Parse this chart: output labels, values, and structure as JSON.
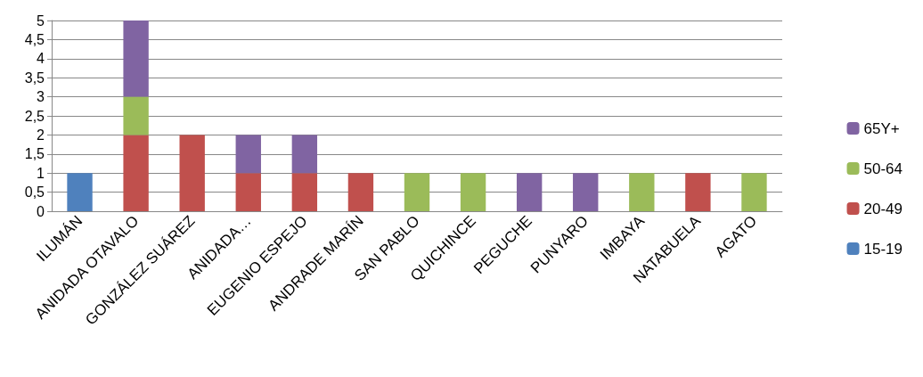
{
  "chart_data": {
    "type": "bar",
    "stacked": true,
    "categories": [
      "ILUMÁN",
      "ANIDADA OTAVALO",
      "GONZÁLEZ SUÁREZ",
      "ANIDADA…",
      "EUGENIO ESPEJO",
      "ANDRADE MARÍN",
      "SAN PABLO",
      "QUICHINCE",
      "PEGUCHE",
      "PUNYARO",
      "IMBAYA",
      "NATABUELA",
      "AGATO"
    ],
    "series": [
      {
        "name": "15-19",
        "color": "#4f81bd",
        "values": [
          1,
          null,
          null,
          null,
          null,
          null,
          null,
          null,
          null,
          null,
          null,
          null,
          null
        ]
      },
      {
        "name": "20-49",
        "color": "#c0504d",
        "values": [
          null,
          2,
          2,
          1,
          1,
          1,
          null,
          null,
          null,
          null,
          null,
          1,
          null
        ]
      },
      {
        "name": "50-64",
        "color": "#9bbb59",
        "values": [
          null,
          1,
          null,
          null,
          null,
          null,
          1,
          1,
          null,
          null,
          1,
          null,
          1
        ]
      },
      {
        "name": "65Y+",
        "color": "#8064a2",
        "values": [
          null,
          2,
          null,
          1,
          1,
          null,
          null,
          null,
          1,
          1,
          null,
          null,
          null
        ]
      }
    ],
    "ylim": [
      0,
      5
    ],
    "yticks": [
      0,
      {
        "value": 0.5,
        "label": "0,5"
      },
      1,
      {
        "value": 1.5,
        "label": "1,5"
      },
      2,
      {
        "value": 2.5,
        "label": "2,5"
      },
      3,
      {
        "value": 3.5,
        "label": "3,5"
      },
      4,
      {
        "value": 4.5,
        "label": "4,5"
      },
      5
    ],
    "grid": "y",
    "legend": "right"
  }
}
